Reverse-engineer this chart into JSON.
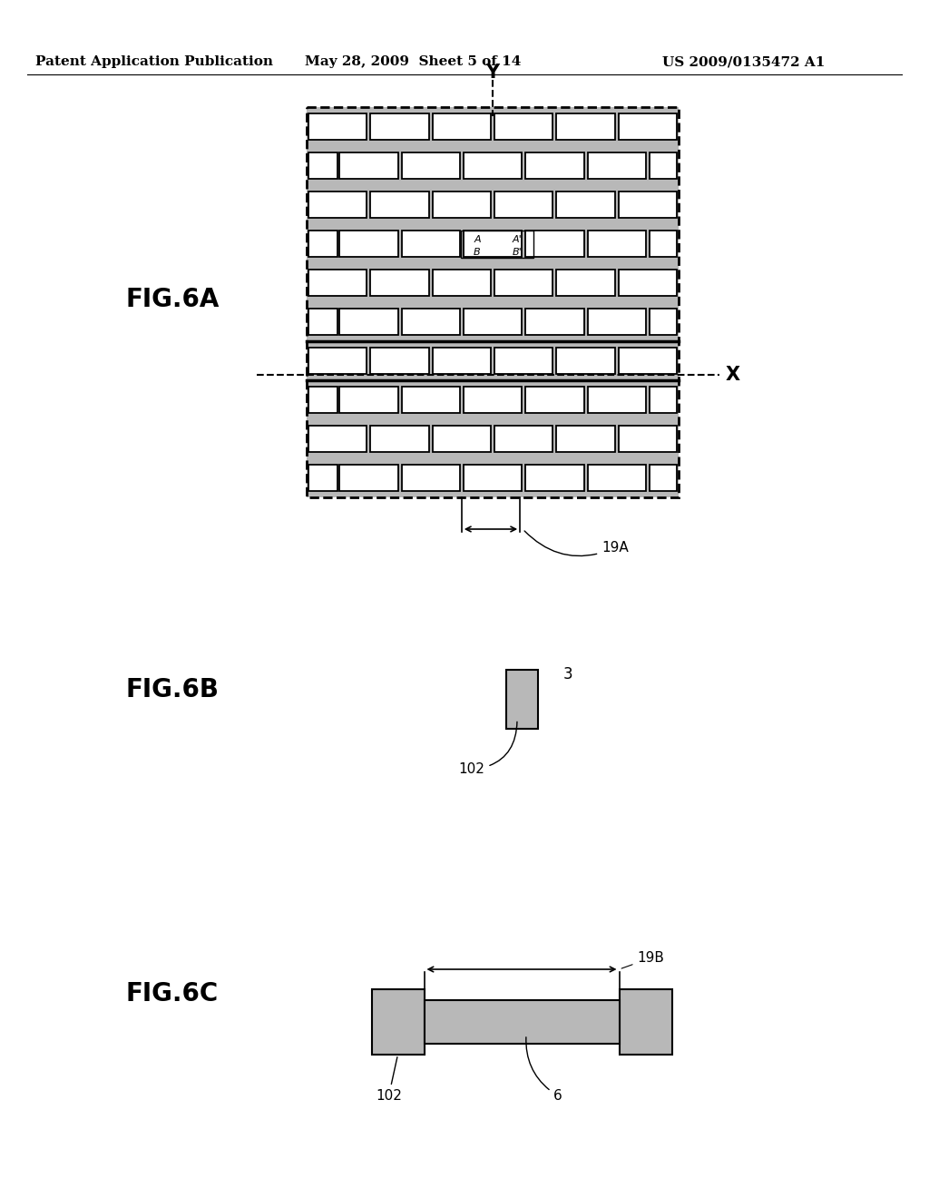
{
  "bg_color": "#ffffff",
  "header_text": "Patent Application Publication",
  "header_date": "May 28, 2009  Sheet 5 of 14",
  "header_patent": "US 2009/0135472 A1",
  "fig6a_label": "FIG.6A",
  "fig6b_label": "FIG.6B",
  "fig6c_label": "FIG.6C",
  "label_19A": "19A",
  "label_3": "3",
  "label_102_b": "102",
  "label_102_c": "102",
  "label_6": "6",
  "label_19B": "19B",
  "label_A": "A",
  "label_A_prime": "A'",
  "label_B": "B",
  "label_B_prime": "B'",
  "label_X": "X",
  "label_Y": "Y",
  "stipple_color": "#b8b8b8",
  "line_color": "#000000"
}
